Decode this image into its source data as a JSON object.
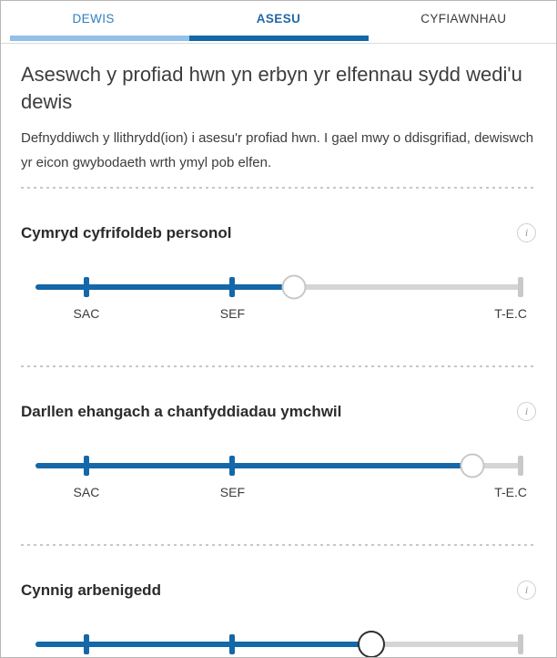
{
  "tabs": [
    {
      "label": "DEWIS",
      "state": "visited"
    },
    {
      "label": "ASESU",
      "state": "active"
    },
    {
      "label": "CYFIAWNHAU",
      "state": "future"
    }
  ],
  "header": {
    "title": "Aseswch y profiad hwn yn erbyn yr elfennau sydd wedi'u dewis",
    "description": "Defnyddiwch y llithrydd(ion) i asesu'r profiad hwn. I gael mwy o ddisgrifiad, dewiswch yr eicon gwybodaeth wrth ymyl pob elfen."
  },
  "scale": {
    "labels": [
      "SAC",
      "SEF",
      "T-E.C"
    ],
    "mid_positions_pct": [
      10.5,
      40.6
    ],
    "end_position_pct": 100
  },
  "sliders": [
    {
      "title": "Cymryd cyfrifoldeb personol",
      "value_pct": 53.3,
      "focused": false
    },
    {
      "title": "Darllen ehangach a chanfyddiadau ymchwil",
      "value_pct": 90.0,
      "focused": false
    },
    {
      "title": "Cynnig arbenigedd",
      "value_pct": 69.3,
      "focused": true
    }
  ],
  "icons": {
    "info_glyph": "i"
  },
  "colors": {
    "accent_dark_blue": "#1467a8",
    "accent_light_blue": "#93c0e7",
    "tab_visited_text": "#2d7fc1",
    "tab_active_text": "#2368a8",
    "track_gray": "#d5d5d5",
    "text": "#3d3d3d"
  }
}
